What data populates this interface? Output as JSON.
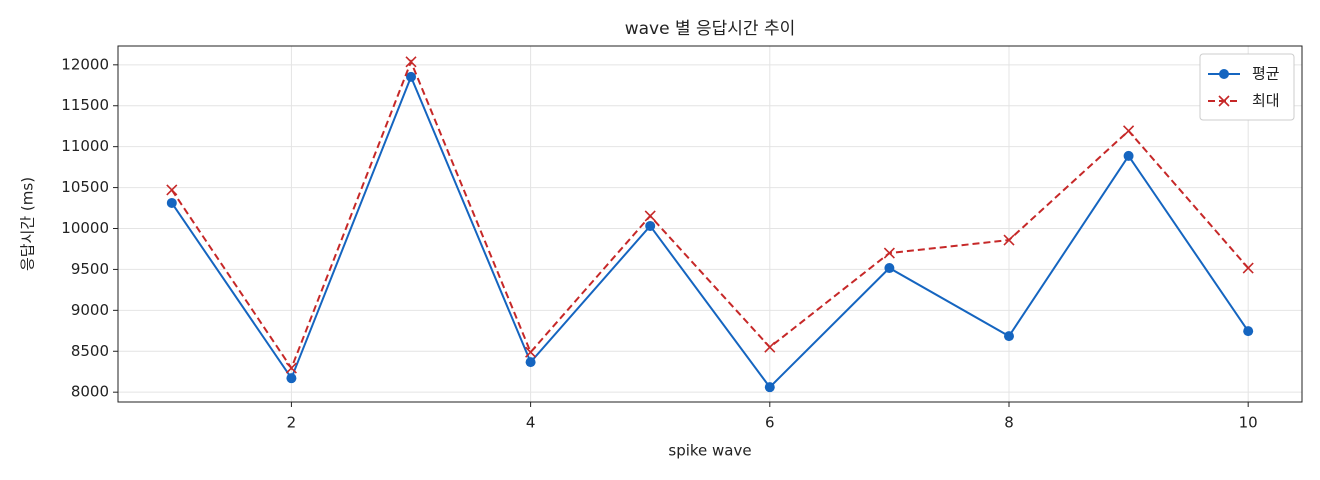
{
  "chart_data": {
    "type": "line",
    "title": "wave 별 응답시간 추이",
    "xlabel": "spike wave",
    "ylabel": "응답시간 (ms)",
    "x": [
      1,
      2,
      3,
      4,
      5,
      6,
      7,
      8,
      9,
      10
    ],
    "series": [
      {
        "name": "평균",
        "color": "#1565c0",
        "marker": "o",
        "linestyle": "solid",
        "values": [
          10312,
          8171,
          11853,
          8367,
          10031,
          8061,
          9517,
          8685,
          10887,
          8746
        ]
      },
      {
        "name": "최대",
        "color": "#c62828",
        "marker": "x",
        "linestyle": "dashed",
        "values": [
          10471,
          8294,
          12037,
          8489,
          10153,
          8550,
          9700,
          9859,
          11193,
          9517
        ]
      }
    ],
    "xlim": [
      0.55,
      10.45
    ],
    "xticks": [
      2,
      4,
      6,
      8,
      10
    ],
    "ylim": [
      7880,
      12230
    ],
    "yticks": [
      8000,
      8500,
      9000,
      9500,
      10000,
      10500,
      11000,
      11500,
      12000
    ],
    "grid": true,
    "legend": "upper right"
  }
}
